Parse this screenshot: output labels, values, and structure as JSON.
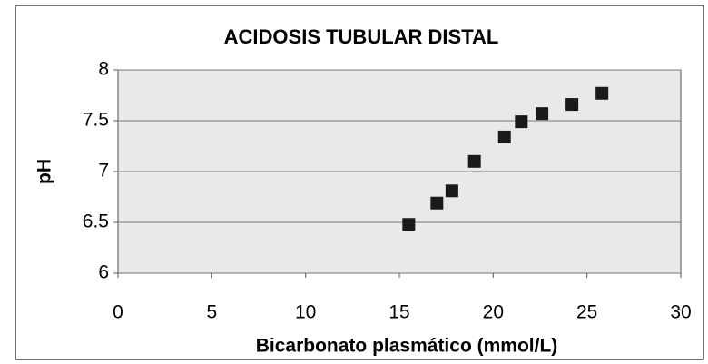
{
  "chart_data": {
    "type": "scatter",
    "title": "ACIDOSIS TUBULAR DISTAL",
    "x_label": "Bicarbonato plasmático (mmol/L)",
    "y_label": "pH",
    "series": [
      {
        "name": null,
        "color": "#1a1a1a",
        "x": [
          15.5,
          17.0,
          17.8,
          19.0,
          20.6,
          21.5,
          22.6,
          24.2,
          25.8
        ],
        "values": [
          6.48,
          6.69,
          6.81,
          7.1,
          7.34,
          7.49,
          7.57,
          7.66,
          7.77
        ]
      }
    ],
    "xlim": [
      0,
      30
    ],
    "xticks": [
      0,
      5,
      10,
      15,
      20,
      25,
      30
    ],
    "ylim": [
      6,
      8
    ],
    "yticks": [
      6,
      6.5,
      7,
      7.5,
      8
    ],
    "grid": true
  }
}
